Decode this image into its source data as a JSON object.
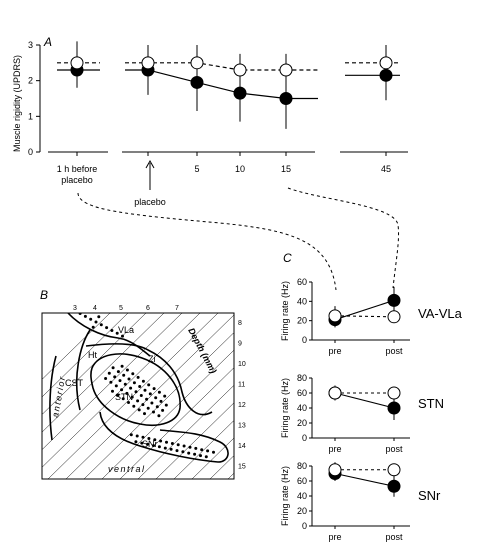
{
  "chart_data": [
    {
      "panel": "A",
      "type": "line",
      "ylabel": "Muscle rigidity (UPDRS)",
      "ylim": [
        0,
        3
      ],
      "yticks": [
        "0",
        "1",
        "2",
        "3"
      ],
      "xticks": [
        "1 h before placebo",
        "",
        "5",
        "10",
        "15",
        "45"
      ],
      "xtick_lines": [
        [
          "1 h before",
          "placebo"
        ],
        [
          ""
        ],
        [
          "5"
        ],
        [
          "10"
        ],
        [
          "15"
        ],
        [
          "45"
        ]
      ],
      "annotation": "placebo",
      "series": [
        {
          "style": "open-dashed",
          "x": [
            0,
            1,
            2,
            3,
            4,
            5
          ],
          "values": [
            2.5,
            2.5,
            2.5,
            2.3,
            2.3,
            2.5
          ],
          "err": [
            0.6,
            0.5,
            0.5,
            0.45,
            0.45,
            0.5
          ]
        },
        {
          "style": "filled-solid",
          "x": [
            0,
            1,
            2,
            3,
            4,
            5
          ],
          "values": [
            2.3,
            2.3,
            1.95,
            1.65,
            1.5,
            2.15
          ],
          "err": [
            0.5,
            0.7,
            0.8,
            0.8,
            0.85,
            0.7
          ]
        }
      ]
    },
    {
      "panel": "C",
      "type": "line",
      "region": "VA-VLa",
      "ylabel": "Firing rate (Hz)",
      "ylim": [
        0,
        60
      ],
      "yticks": [
        "0",
        "20",
        "40",
        "60"
      ],
      "xticks": [
        "pre",
        "post"
      ],
      "series": [
        {
          "style": "open-dashed",
          "values": [
            25,
            24
          ],
          "err": [
            10,
            0
          ]
        },
        {
          "style": "filled-solid",
          "values": [
            21,
            41
          ],
          "err": [
            8,
            14
          ]
        }
      ]
    },
    {
      "panel": "C",
      "type": "line",
      "region": "STN",
      "ylabel": "Firing rate (Hz)",
      "ylim": [
        0,
        80
      ],
      "yticks": [
        "0",
        "20",
        "40",
        "60",
        "80"
      ],
      "xticks": [
        "pre",
        "post"
      ],
      "series": [
        {
          "style": "open-dashed",
          "values": [
            60,
            60
          ],
          "err": [
            10,
            0
          ]
        },
        {
          "style": "filled-solid",
          "values": [
            60,
            40
          ],
          "err": [
            8,
            16
          ]
        }
      ]
    },
    {
      "panel": "C",
      "type": "line",
      "region": "SNr",
      "ylabel": "Firing rate (Hz)",
      "ylim": [
        0,
        80
      ],
      "yticks": [
        "0",
        "20",
        "40",
        "60",
        "80"
      ],
      "xticks": [
        "pre",
        "post"
      ],
      "series": [
        {
          "style": "open-dashed",
          "values": [
            75,
            75
          ],
          "err": [
            10,
            0
          ]
        },
        {
          "style": "filled-solid",
          "values": [
            70,
            53
          ],
          "err": [
            10,
            14
          ]
        }
      ]
    }
  ],
  "panel_b": {
    "letter": "B",
    "top_numbers": [
      "3",
      "4",
      "5",
      "6",
      "7"
    ],
    "depth_label": "Depth (mm)",
    "depth_numbers": [
      "8",
      "9",
      "10",
      "11",
      "12",
      "13",
      "14",
      "15"
    ],
    "labels": {
      "vla": "VLa",
      "ht": "Ht",
      "zi": "Zi",
      "cst": "CST",
      "stn": "STN",
      "snr": "SNr",
      "anterior": "anterior",
      "ventral": "ventral"
    }
  },
  "panel_letters": {
    "a": "A",
    "c": "C"
  }
}
